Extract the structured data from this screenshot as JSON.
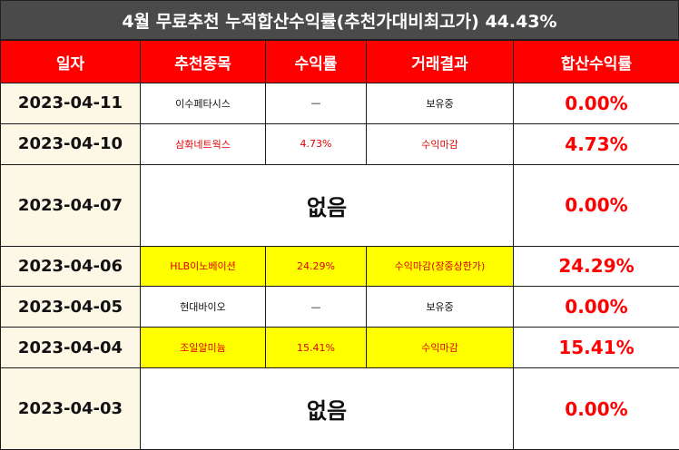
{
  "title": "4월 무료추천 누적합산수익률(추천가대비최고가) 44.43%",
  "headers": [
    "일자",
    "추천종목",
    "수익률",
    "거래결과",
    "합산수익률"
  ],
  "rows": [
    {
      "date": "2023-04-11",
      "stock": "이수페타시스",
      "ret": "—",
      "result": "보유중",
      "sum": "0.00%"
    },
    {
      "date": "2023-04-10",
      "stock": "삼화네트웍스",
      "ret": "4.73%",
      "result": "수익마감",
      "sum": "4.73%"
    },
    {
      "date": "2023-04-07",
      "none": "없음",
      "sum": "0.00%"
    },
    {
      "date": "2023-04-06",
      "stock": "HLB이노베이션",
      "ret": "24.29%",
      "result": "수익마감(장중상한가)",
      "sum": "24.29%"
    },
    {
      "date": "2023-04-05",
      "stock": "현대바이오",
      "ret": "—",
      "result": "보유중",
      "sum": "0.00%"
    },
    {
      "date": "2023-04-04",
      "stock": "조일알미늄",
      "ret": "15.41%",
      "result": "수익마감",
      "sum": "15.41%"
    },
    {
      "date": "2023-04-03",
      "none": "없음",
      "sum": "0.00%"
    }
  ],
  "colors": {
    "title_bg": "#4a4a4a",
    "header_bg": "#ff0000",
    "date_bg": "#fdf7e6",
    "highlight": "#ffff00",
    "accent_text": "#ff0000"
  }
}
